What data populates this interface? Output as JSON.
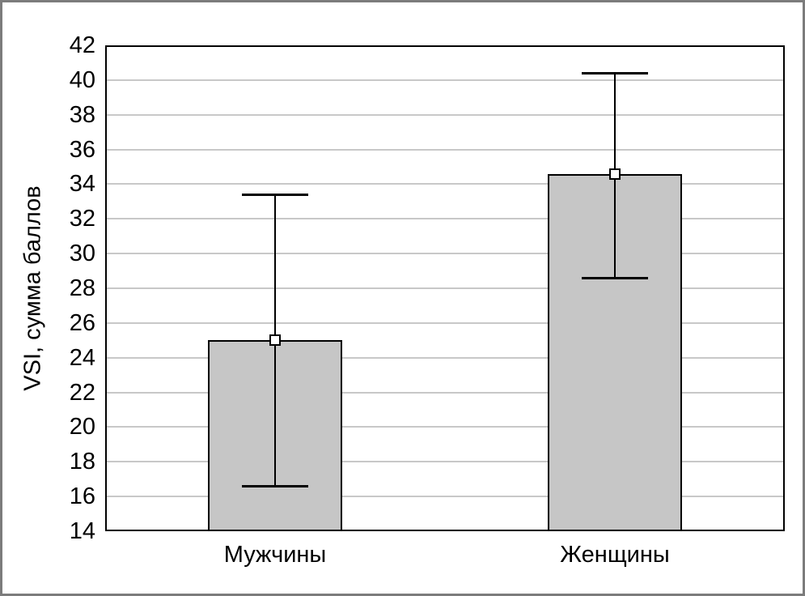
{
  "figure": {
    "frame_border_color": "#7c7c7c",
    "background_color": "#ffffff"
  },
  "chart_data": {
    "type": "bar",
    "ylabel": "VSI, сумма баллов",
    "categories": [
      "Мужчины",
      "Женщины"
    ],
    "values": [
      25.0,
      34.6
    ],
    "error_low": [
      16.6,
      28.6
    ],
    "error_high": [
      33.4,
      40.4
    ],
    "ylim": [
      14,
      42
    ],
    "yticks": [
      14,
      16,
      18,
      20,
      22,
      24,
      26,
      28,
      30,
      32,
      34,
      36,
      38,
      40,
      42
    ],
    "grid": "horizontal",
    "legend_position": "none",
    "marker": "open-square",
    "colors": {
      "bar_fill": "#c6c6c6",
      "bar_border": "#000000",
      "gridline": "#c8c8c8",
      "error_bar": "#000000",
      "axis_frame": "#000000",
      "text": "#000000"
    }
  }
}
